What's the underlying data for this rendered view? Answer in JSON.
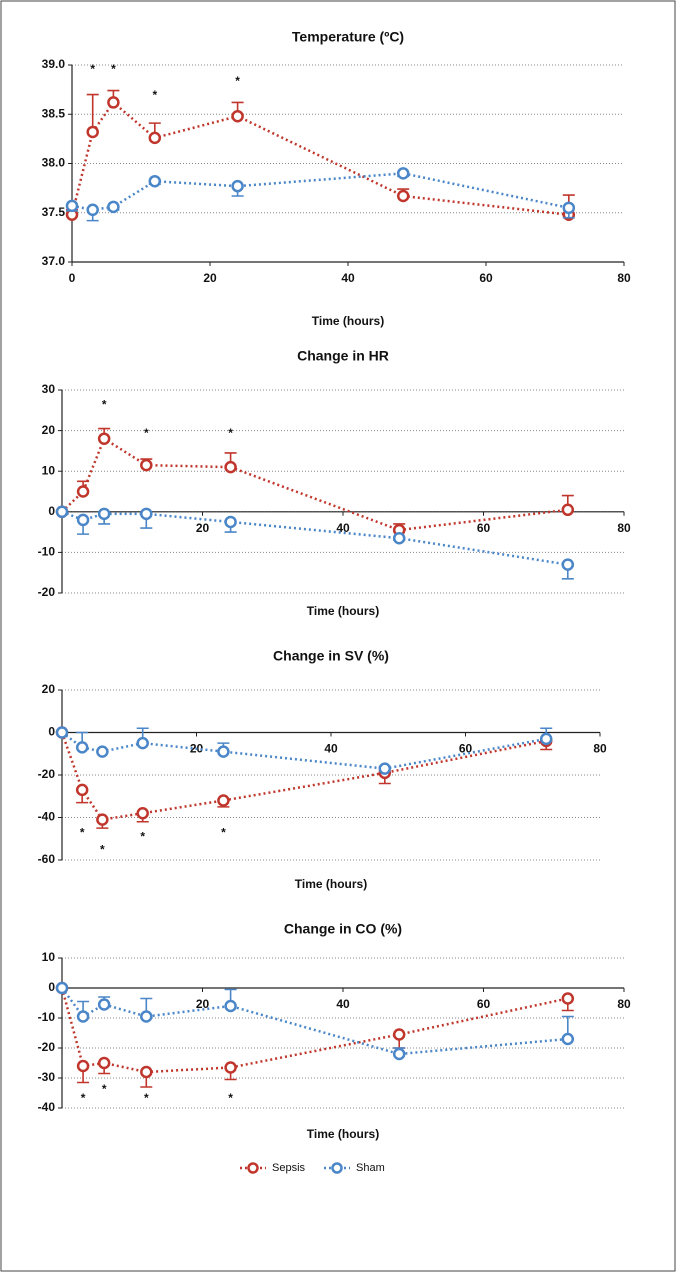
{
  "chart_data": [
    {
      "type": "line",
      "title": "Temperature (ºC)",
      "xlabel": "Time (hours)",
      "xlim": [
        0,
        80
      ],
      "xticks": [
        0,
        20,
        40,
        60,
        80
      ],
      "ylim": [
        37.0,
        39.0
      ],
      "yticks": [
        {
          "value": 37.0,
          "label": "37.0"
        },
        37.5,
        {
          "value": 38.0,
          "label": "38.0"
        },
        38.5,
        {
          "value": 39.0,
          "label": "39.0"
        }
      ],
      "x_axis_at": 37.0,
      "grid": true,
      "series": [
        {
          "name": "Sepsis",
          "color": "#c0362c",
          "error_direction": "up",
          "x": [
            0,
            3,
            6,
            12,
            24,
            48,
            72
          ],
          "values": [
            37.48,
            38.32,
            38.62,
            38.26,
            38.48,
            37.67,
            37.48
          ],
          "errors": [
            0.05,
            0.38,
            0.12,
            0.15,
            0.14,
            0.07,
            0.2
          ]
        },
        {
          "name": "Sham",
          "color": "#4a86c8",
          "error_direction": "down",
          "x": [
            0,
            3,
            6,
            12,
            24,
            48,
            72
          ],
          "values": [
            37.57,
            37.53,
            37.56,
            37.82,
            37.77,
            37.9,
            37.55
          ],
          "errors": [
            0.05,
            0.11,
            0.03,
            0.03,
            0.1,
            0.03,
            0.1
          ]
        }
      ],
      "annotations": [
        {
          "text": "*",
          "x": 3,
          "y": 38.98
        },
        {
          "text": "*",
          "x": 6,
          "y": 38.98
        },
        {
          "text": "*",
          "x": 12,
          "y": 38.72
        },
        {
          "text": "*",
          "x": 24,
          "y": 38.86
        }
      ]
    },
    {
      "type": "line",
      "title": "Change in HR",
      "xlabel": "Time (hours)",
      "xlim": [
        0,
        80
      ],
      "xticks": [
        20,
        40,
        60,
        80
      ],
      "ylim": [
        -20,
        30
      ],
      "yticks": [
        -20,
        -10,
        0,
        10,
        20,
        30
      ],
      "x_axis_at": 0,
      "grid": true,
      "series": [
        {
          "name": "Sepsis",
          "color": "#c0362c",
          "error_direction": "up",
          "x": [
            0,
            3,
            6,
            12,
            24,
            48,
            72
          ],
          "values": [
            0,
            5,
            18,
            11.5,
            11,
            -4.5,
            0.5
          ],
          "errors": [
            0,
            2.5,
            2.5,
            1.5,
            3.5,
            1.5,
            3.5
          ]
        },
        {
          "name": "Sham",
          "color": "#4a86c8",
          "error_direction": "down",
          "x": [
            0,
            3,
            6,
            12,
            24,
            48,
            72
          ],
          "values": [
            0,
            -2,
            -0.5,
            -0.5,
            -2.5,
            -6.5,
            -13
          ],
          "errors": [
            0,
            3.5,
            2.5,
            3.5,
            2.5,
            0.5,
            3.5
          ]
        }
      ],
      "annotations": [
        {
          "text": "*",
          "x": 6,
          "y": 27
        },
        {
          "text": "*",
          "x": 12,
          "y": 20
        },
        {
          "text": "*",
          "x": 24,
          "y": 20
        }
      ]
    },
    {
      "type": "line",
      "title": "Change in SV (%)",
      "xlabel": "Time (hours)",
      "xlim": [
        0,
        80
      ],
      "xticks": [
        20,
        40,
        60,
        80
      ],
      "ylim": [
        -60,
        20
      ],
      "yticks": [
        -60,
        -40,
        -20,
        0,
        20
      ],
      "x_axis_at": 0,
      "grid": true,
      "series": [
        {
          "name": "Sepsis",
          "color": "#c0362c",
          "error_direction": "down",
          "x": [
            0,
            3,
            6,
            12,
            24,
            48,
            72
          ],
          "values": [
            0,
            -27,
            -41,
            -38,
            -32,
            -19,
            -4
          ],
          "errors": [
            0,
            6,
            4,
            4,
            3,
            5,
            4
          ]
        },
        {
          "name": "Sham",
          "color": "#4a86c8",
          "error_direction": "up",
          "x": [
            0,
            3,
            6,
            12,
            24,
            48,
            72
          ],
          "values": [
            0,
            -7,
            -9,
            -5,
            -9,
            -17,
            -3
          ],
          "errors": [
            0,
            7,
            0,
            7,
            4,
            1,
            5
          ]
        }
      ],
      "annotations": [
        {
          "text": "*",
          "x": 3,
          "y": -46
        },
        {
          "text": "*",
          "x": 6,
          "y": -54
        },
        {
          "text": "*",
          "x": 12,
          "y": -48
        },
        {
          "text": "*",
          "x": 24,
          "y": -46
        }
      ]
    },
    {
      "type": "line",
      "title": "Change in CO (%)",
      "xlabel": "Time (hours)",
      "xlim": [
        0,
        80
      ],
      "xticks": [
        20,
        40,
        60,
        80
      ],
      "ylim": [
        -40,
        10
      ],
      "yticks": [
        -40,
        -30,
        -20,
        -10,
        0,
        10
      ],
      "x_axis_at": 0,
      "grid": true,
      "series": [
        {
          "name": "Sepsis",
          "color": "#c0362c",
          "error_direction": "down",
          "x": [
            0,
            3,
            6,
            12,
            24,
            48,
            72
          ],
          "values": [
            0,
            -26,
            -25,
            -28,
            -26.5,
            -15.5,
            -3.5
          ],
          "errors": [
            0,
            5.5,
            3.5,
            5,
            4,
            4.5,
            4
          ]
        },
        {
          "name": "Sham",
          "color": "#4a86c8",
          "error_direction": "up",
          "x": [
            0,
            3,
            6,
            12,
            24,
            48,
            72
          ],
          "values": [
            0,
            -9.5,
            -5.5,
            -9.5,
            -6,
            -22,
            -17
          ],
          "errors": [
            0,
            5,
            2.5,
            6,
            5.5,
            2,
            7.5
          ]
        }
      ],
      "annotations": [
        {
          "text": "*",
          "x": 3,
          "y": -36
        },
        {
          "text": "*",
          "x": 6,
          "y": -33
        },
        {
          "text": "*",
          "x": 12,
          "y": -36
        },
        {
          "text": "*",
          "x": 24,
          "y": -36
        }
      ]
    }
  ]
}
